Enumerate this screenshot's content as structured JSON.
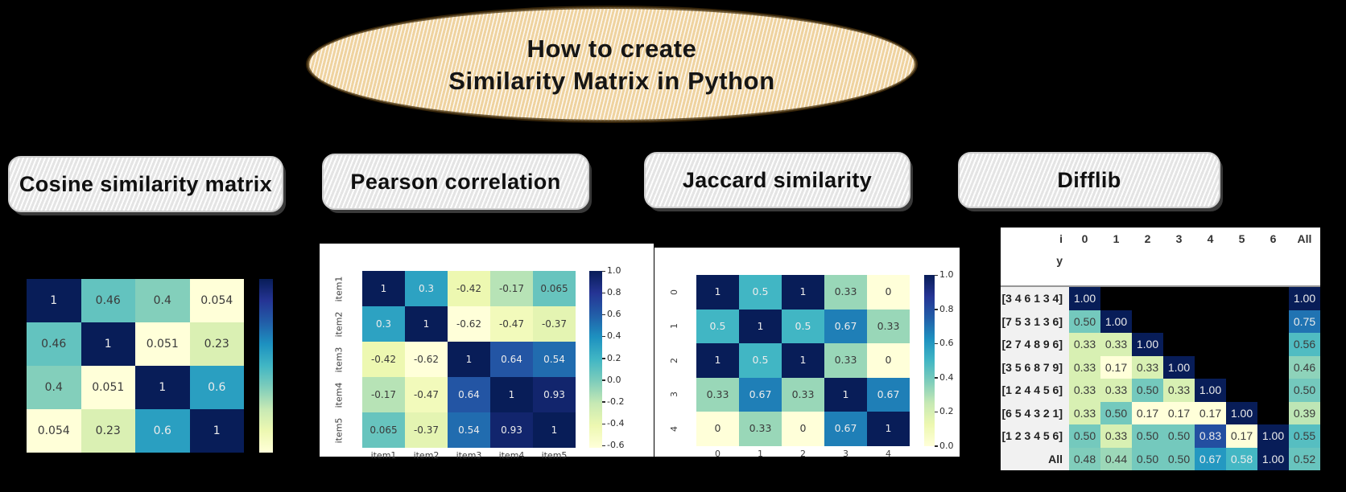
{
  "title_bubble": {
    "line1": "How to create",
    "line2": "Similarity Matrix in Python"
  },
  "section_labels": [
    {
      "label": "Cosine similarity matrix"
    },
    {
      "label": "Pearson correlation"
    },
    {
      "label": "Jaccard similarity"
    },
    {
      "label": "Difflib"
    }
  ],
  "colors": {
    "page_background": "#000000",
    "bubble_fill": "#efd3a0",
    "label_box_fill": "#ececec",
    "colormap_name": "YlGnBu",
    "colormap_stops": [
      "#ffffd9",
      "#edf8b1",
      "#c7e9b4",
      "#7fcdbb",
      "#41b6c4",
      "#1d91c0",
      "#225ea8",
      "#253494",
      "#081d58"
    ],
    "annotation_light": "#ececec",
    "annotation_dark": "#3a3a3a",
    "figure_background": "#ffffff"
  },
  "chart_data": [
    {
      "id": "cosine",
      "type": "heatmap",
      "title": "Cosine similarity matrix",
      "x_labels": [],
      "y_labels": [],
      "matrix": [
        [
          1,
          0.46,
          0.4,
          0.054
        ],
        [
          0.46,
          1,
          0.051,
          0.23
        ],
        [
          0.4,
          0.051,
          1,
          0.6
        ],
        [
          0.054,
          0.23,
          0.6,
          1
        ]
      ],
      "vmin": 0.051,
      "vmax": 1,
      "colorbar_ticks": [],
      "legend_position": "right",
      "figure_background": "transparent"
    },
    {
      "id": "pearson",
      "type": "heatmap",
      "title": "Pearson correlation",
      "x_labels": [
        "item1",
        "item2",
        "item3",
        "item4",
        "item5"
      ],
      "y_labels": [
        "item1",
        "item2",
        "item3",
        "item4",
        "item5"
      ],
      "matrix": [
        [
          1,
          0.3,
          -0.42,
          -0.17,
          0.065
        ],
        [
          0.3,
          1,
          -0.62,
          -0.47,
          -0.37
        ],
        [
          -0.42,
          -0.62,
          1,
          0.64,
          0.54
        ],
        [
          -0.17,
          -0.47,
          0.64,
          1,
          0.93
        ],
        [
          0.065,
          -0.37,
          0.54,
          0.93,
          1
        ]
      ],
      "vmin": -0.62,
      "vmax": 1,
      "colorbar_ticks": [
        1.0,
        0.8,
        0.6,
        0.4,
        0.2,
        0.0,
        -0.2,
        -0.4,
        -0.6
      ],
      "legend_position": "right",
      "figure_background": "#ffffff"
    },
    {
      "id": "jaccard",
      "type": "heatmap",
      "title": "Jaccard similarity",
      "x_labels": [
        "0",
        "1",
        "2",
        "3",
        "4"
      ],
      "y_labels": [
        "0",
        "1",
        "2",
        "3",
        "4"
      ],
      "matrix": [
        [
          1,
          0.5,
          1,
          0.33,
          0
        ],
        [
          0.5,
          1,
          0.5,
          0.67,
          0.33
        ],
        [
          1,
          0.5,
          1,
          0.33,
          0
        ],
        [
          0.33,
          0.67,
          0.33,
          1,
          0.67
        ],
        [
          0,
          0.33,
          0,
          0.67,
          1
        ]
      ],
      "vmin": 0,
      "vmax": 1,
      "colorbar_ticks": [
        1.0,
        0.8,
        0.6,
        0.4,
        0.2,
        0.0
      ],
      "legend_position": "right",
      "figure_background": "#ffffff"
    },
    {
      "id": "difflib",
      "type": "table",
      "title": "Difflib",
      "corner_label": "i",
      "index_label": "y",
      "columns": [
        "0",
        "1",
        "2",
        "3",
        "4",
        "5",
        "6",
        "All"
      ],
      "row_labels": [
        "[3 4 6 1 3 4]",
        "[7 5 3 1 3 6]",
        "[2 7 4 8 9 6]",
        "[3 5 6 8 7 9]",
        "[1 2 4 4 5 6]",
        "[6 5 4 3 2 1]",
        "[1 2 3 4 5 6]",
        "All"
      ],
      "values": [
        [
          1.0,
          null,
          null,
          null,
          null,
          null,
          null,
          1.0
        ],
        [
          0.5,
          1.0,
          null,
          null,
          null,
          null,
          null,
          0.75
        ],
        [
          0.33,
          0.33,
          1.0,
          null,
          null,
          null,
          null,
          0.56
        ],
        [
          0.33,
          0.17,
          0.33,
          1.0,
          null,
          null,
          null,
          0.46
        ],
        [
          0.33,
          0.33,
          0.5,
          0.33,
          1.0,
          null,
          null,
          0.5
        ],
        [
          0.33,
          0.5,
          0.17,
          0.17,
          0.17,
          1.0,
          null,
          0.39
        ],
        [
          0.5,
          0.33,
          0.5,
          0.5,
          0.83,
          0.17,
          1.0,
          0.55
        ],
        [
          0.48,
          0.44,
          0.5,
          0.5,
          0.67,
          0.58,
          1.0,
          0.52
        ]
      ],
      "vmin": 0.17,
      "vmax": 1.0
    }
  ]
}
